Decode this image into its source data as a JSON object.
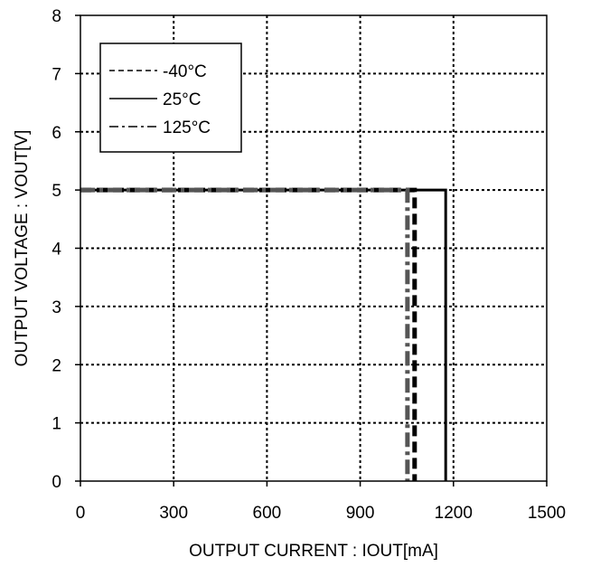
{
  "chart_data": {
    "type": "line",
    "xlabel": "OUTPUT CURRENT : IOUT[mA]",
    "ylabel": "OUTPUT VOLTAGE : VOUT[V]",
    "xlim": [
      0,
      1500
    ],
    "ylim": [
      0,
      8
    ],
    "xticks": [
      0,
      300,
      600,
      900,
      1200,
      1500
    ],
    "yticks": [
      0,
      1,
      2,
      3,
      4,
      5,
      6,
      7,
      8
    ],
    "grid": true,
    "legend_position": "top-left",
    "series": [
      {
        "name": "-40°C",
        "style": "dashed",
        "color": "#000000",
        "x": [
          0,
          1075,
          1075
        ],
        "y": [
          5,
          5,
          0
        ]
      },
      {
        "name": "25°C",
        "style": "solid",
        "color": "#000000",
        "x": [
          0,
          1175,
          1175
        ],
        "y": [
          5,
          5,
          0
        ]
      },
      {
        "name": "125°C",
        "style": "dash-dot",
        "color": "#555555",
        "x": [
          0,
          1052,
          1052
        ],
        "y": [
          5,
          5,
          0
        ]
      }
    ]
  }
}
